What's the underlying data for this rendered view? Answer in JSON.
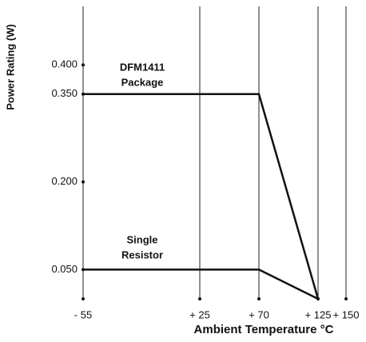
{
  "chart_data": {
    "type": "line",
    "y_label": "Power Rating (W)",
    "x_label": "Ambient Temperature °C",
    "annotations": [
      {
        "lines": [
          "DFM1411",
          "Package"
        ]
      },
      {
        "lines": [
          "Single",
          "Resistor"
        ]
      }
    ],
    "series": [
      {
        "name": "DFM1411 Package",
        "color": "#111111",
        "x": [
          -55,
          70,
          125
        ],
        "values": [
          0.35,
          0.35,
          0
        ]
      },
      {
        "name": "Single Resistor",
        "color": "#111111",
        "x": [
          -55,
          70,
          125
        ],
        "values": [
          0.05,
          0.05,
          0
        ]
      }
    ],
    "xlim": [
      -55,
      150
    ],
    "xticks": [
      {
        "value": -55,
        "label": "- 55"
      },
      {
        "value": 25,
        "label": "+ 25"
      },
      {
        "value": 70,
        "label": "+ 70"
      },
      {
        "value": 125,
        "label": "+ 125"
      },
      {
        "value": 150,
        "label": "+ 150"
      }
    ],
    "ylim": [
      0,
      0.5
    ],
    "yticks": [
      {
        "value": 0.05,
        "label": "0.050"
      },
      {
        "value": 0.2,
        "label": "0.200"
      },
      {
        "value": 0.35,
        "label": "0.350"
      },
      {
        "value": 0.4,
        "label": "0.400"
      }
    ],
    "grid": true
  }
}
